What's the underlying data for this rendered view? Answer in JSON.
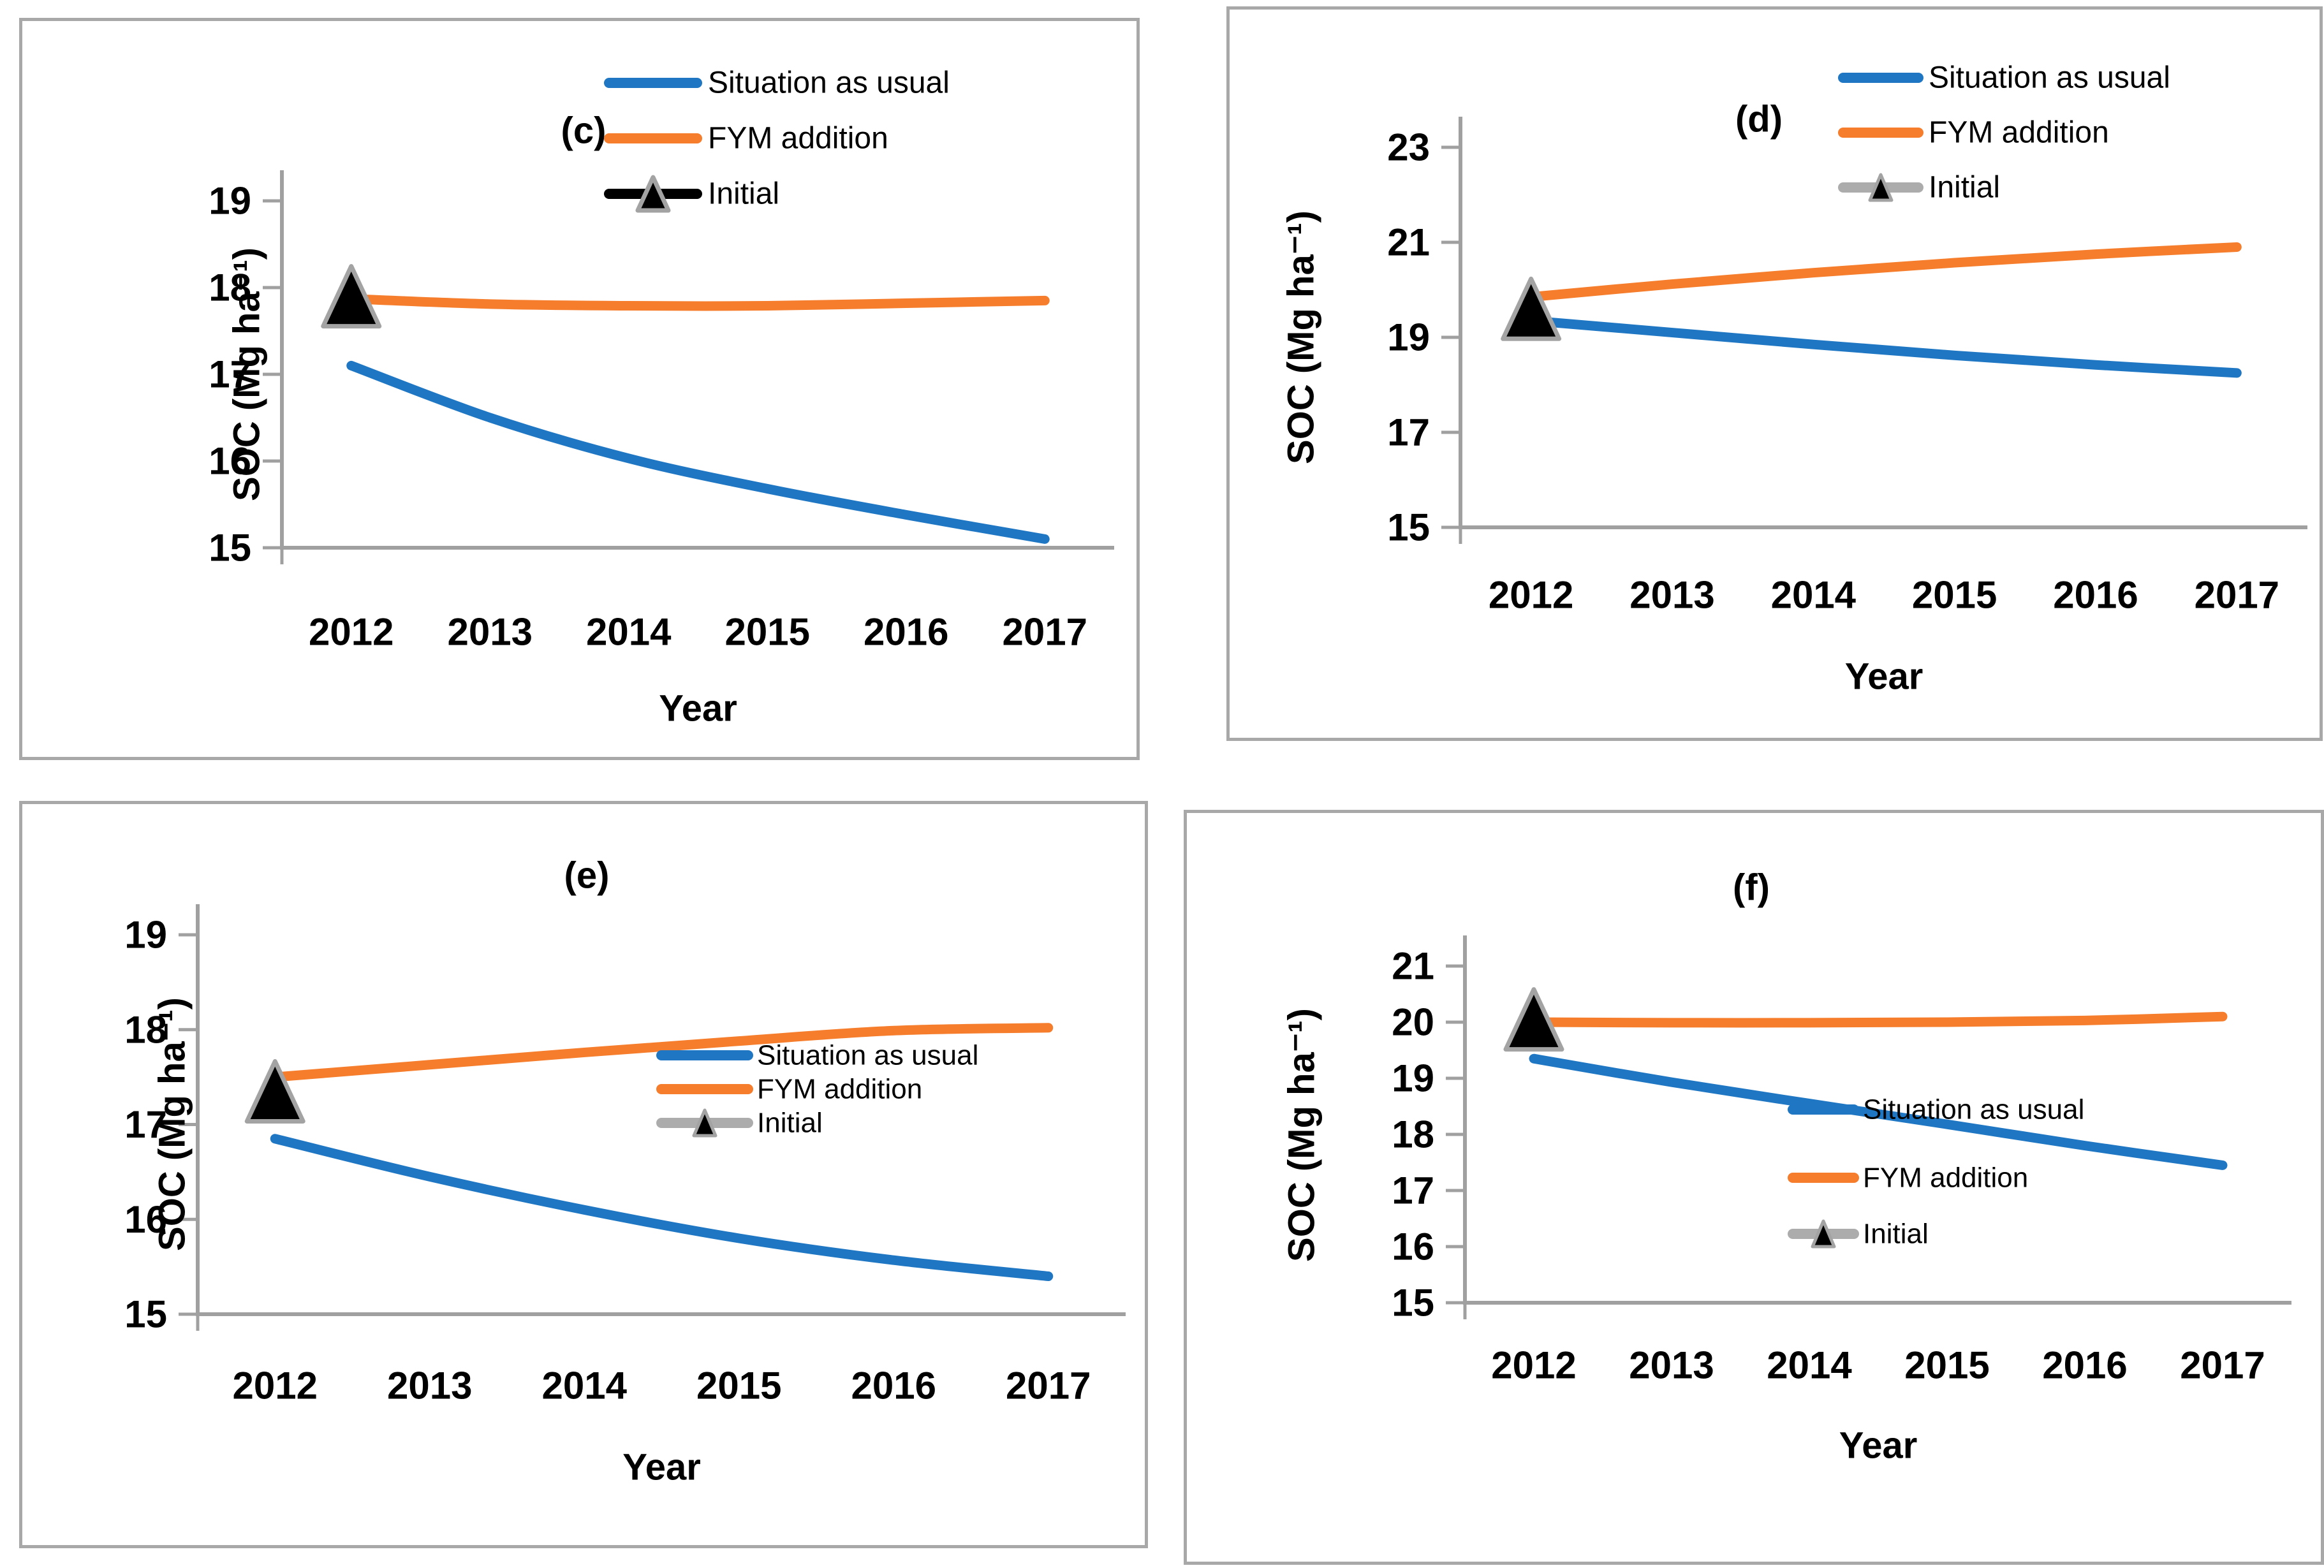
{
  "page": {
    "background": "#FFFFFF"
  },
  "colors": {
    "situation": "#1F77C4",
    "fym": "#F57D2C",
    "initial_marker_fill": "#000000",
    "initial_marker_stroke": "#A3A3A3",
    "legend_initial_line_gray": "#ACACAC",
    "legend_initial_line_black": "#000000",
    "axis": "#A0A0A0",
    "panel_border": "#A8A8A8",
    "text": "#000000"
  },
  "legend": {
    "situation": "Situation as usual",
    "fym": "FYM addition",
    "initial": "Initial"
  },
  "axis_titles": {
    "x": "Year",
    "y": "SOC (Mg ha⁻¹)"
  },
  "chart_data": [
    {
      "id": "c",
      "type": "line",
      "title": "(c)",
      "x": [
        2012,
        2013,
        2014,
        2015,
        2016,
        2017
      ],
      "xlabel": "Year",
      "ylabel": "SOC (Mg ha⁻¹)",
      "ylim": [
        15,
        19
      ],
      "yticks": [
        15,
        16,
        17,
        18,
        19
      ],
      "grid": false,
      "legend_position": "top",
      "legend_initial_line": "black",
      "series": [
        {
          "name": "Situation as usual",
          "values": [
            17.1,
            16.5,
            16.03,
            15.68,
            15.38,
            15.1
          ]
        },
        {
          "name": "FYM addition",
          "values": [
            17.87,
            17.81,
            17.79,
            17.79,
            17.82,
            17.85
          ]
        }
      ],
      "initial_point": {
        "x": 2012,
        "value": 17.9
      }
    },
    {
      "id": "d",
      "type": "line",
      "title": "(d)",
      "x": [
        2012,
        2013,
        2014,
        2015,
        2016,
        2017
      ],
      "xlabel": "Year",
      "ylabel": "SOC (Mg ha⁻¹)",
      "ylim": [
        15,
        23
      ],
      "yticks": [
        15,
        17,
        19,
        21,
        23
      ],
      "grid": false,
      "legend_position": "top",
      "legend_initial_line": "gray",
      "series": [
        {
          "name": "Situation as usual",
          "values": [
            19.35,
            19.1,
            18.85,
            18.62,
            18.42,
            18.25
          ]
        },
        {
          "name": "FYM addition",
          "values": [
            19.85,
            20.12,
            20.36,
            20.57,
            20.75,
            20.9
          ]
        }
      ],
      "initial_point": {
        "x": 2012,
        "value": 19.6
      }
    },
    {
      "id": "e",
      "type": "line",
      "title": "(e)",
      "x": [
        2012,
        2013,
        2014,
        2015,
        2016,
        2017
      ],
      "xlabel": "Year",
      "ylabel": "SOC (Mg ha⁻¹)",
      "ylim": [
        15,
        19
      ],
      "yticks": [
        15,
        16,
        17,
        18,
        19
      ],
      "grid": false,
      "legend_position": "inside-center",
      "legend_initial_line": "gray",
      "series": [
        {
          "name": "Situation as usual",
          "values": [
            16.85,
            16.45,
            16.1,
            15.8,
            15.57,
            15.4
          ]
        },
        {
          "name": "FYM addition",
          "values": [
            17.5,
            17.63,
            17.76,
            17.88,
            17.99,
            18.02
          ]
        }
      ],
      "initial_point": {
        "x": 2012,
        "value": 17.35
      }
    },
    {
      "id": "f",
      "type": "line",
      "title": "(f)",
      "x": [
        2012,
        2013,
        2014,
        2015,
        2016,
        2017
      ],
      "xlabel": "Year",
      "ylabel": "SOC (Mg ha⁻¹)",
      "ylim": [
        15,
        21
      ],
      "yticks": [
        15,
        16,
        17,
        18,
        19,
        20,
        21
      ],
      "grid": false,
      "legend_position": "inside-right",
      "legend_initial_line": "gray",
      "series": [
        {
          "name": "Situation as usual",
          "values": [
            19.35,
            18.93,
            18.55,
            18.18,
            17.8,
            17.45
          ]
        },
        {
          "name": "FYM addition",
          "values": [
            20.0,
            19.99,
            19.99,
            20.0,
            20.03,
            20.1
          ]
        }
      ],
      "initial_point": {
        "x": 2012,
        "value": 20.05
      }
    }
  ]
}
